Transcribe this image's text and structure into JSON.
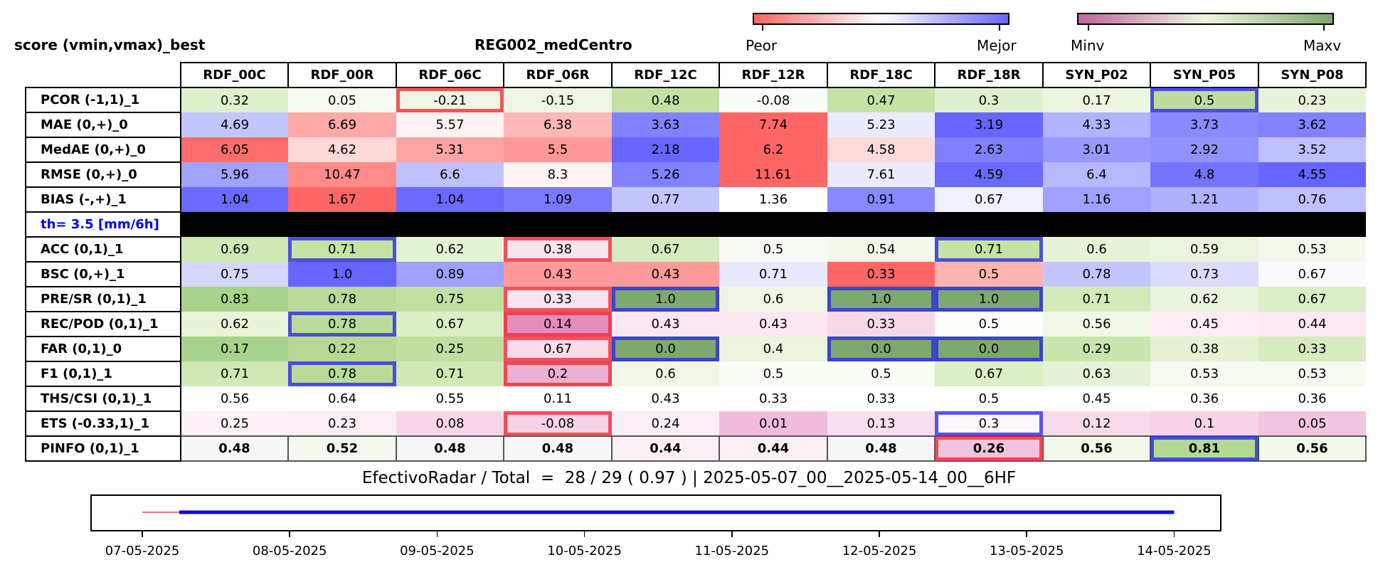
{
  "left_title": "score (vmin,vmax)_best",
  "region_title": "REG002_medCentro",
  "colorbar_quality": {
    "low_label": "Peor",
    "high_label": "Mejor",
    "low_color": "#ff6666",
    "mid_color": "#ffffff",
    "high_color": "#6666ff"
  },
  "colorbar_range": {
    "low_label": "Minv",
    "high_label": "Maxv",
    "low_color": "#c0659f",
    "mid_color": "#eef6dc",
    "high_color": "#7ea870"
  },
  "chart_data": {
    "type": "table",
    "columns": [
      "RDF_00C",
      "RDF_00R",
      "RDF_06C",
      "RDF_06R",
      "RDF_12C",
      "RDF_12R",
      "RDF_18C",
      "RDF_18R",
      "SYN_P02",
      "SYN_P05",
      "SYN_P08"
    ],
    "threshold_label": "th= 3.5 [mm/6h]",
    "rows": [
      {
        "label": "PCOR (-1,1)_1",
        "values": [
          "0.32",
          "0.05",
          "-0.21",
          "-0.15",
          "0.48",
          "-0.08",
          "0.47",
          "0.3",
          "0.17",
          "0.5",
          "0.23"
        ],
        "colors": [
          "#dff0cc",
          "#f7fbf2",
          "#eef6e3",
          "#eef6e3",
          "#c3e1a3",
          "#fbfdf8",
          "#c6e3a6",
          "#e0f0ce",
          "#ecf5df",
          "#bedd9c",
          "#e8f3da"
        ],
        "best": [
          null,
          null,
          "worst",
          null,
          null,
          null,
          null,
          null,
          null,
          "best",
          null
        ]
      },
      {
        "label": "MAE (0,+)_0",
        "values": [
          "4.69",
          "6.69",
          "5.57",
          "6.38",
          "3.63",
          "7.74",
          "5.23",
          "3.19",
          "4.33",
          "3.73",
          "3.62"
        ],
        "colors": [
          "#c4c4ff",
          "#ffa8a8",
          "#fff2f2",
          "#ffb8b8",
          "#8282ff",
          "#ff6666",
          "#ebebff",
          "#6666ff",
          "#b2b2ff",
          "#8a8aff",
          "#8282ff"
        ],
        "best": [
          null,
          null,
          null,
          null,
          null,
          null,
          null,
          null,
          null,
          null,
          null
        ]
      },
      {
        "label": "MedAE (0,+)_0",
        "values": [
          "6.05",
          "4.62",
          "5.31",
          "5.5",
          "2.18",
          "6.2",
          "4.58",
          "2.63",
          "3.01",
          "2.92",
          "3.52"
        ],
        "colors": [
          "#ff6c6c",
          "#ffd8d8",
          "#ffa4a4",
          "#ff9898",
          "#6666ff",
          "#ff6666",
          "#ffdada",
          "#8080ff",
          "#9898ff",
          "#9292ff",
          "#c0c0ff"
        ],
        "best": [
          null,
          null,
          null,
          null,
          null,
          null,
          null,
          null,
          null,
          null,
          null
        ]
      },
      {
        "label": "RMSE (0,+)_0",
        "values": [
          "5.96",
          "10.47",
          "6.6",
          "8.3",
          "5.26",
          "11.61",
          "7.61",
          "4.59",
          "6.4",
          "4.8",
          "4.55"
        ],
        "colors": [
          "#a2a2ff",
          "#ff8a8a",
          "#c0c0ff",
          "#fff2f2",
          "#8282ff",
          "#ff6666",
          "#eaeaff",
          "#6a6aff",
          "#b8b8ff",
          "#7474ff",
          "#6666ff"
        ],
        "best": [
          null,
          null,
          null,
          null,
          null,
          null,
          null,
          null,
          null,
          null,
          null
        ]
      },
      {
        "label": "BIAS (-,+)_1",
        "values": [
          "1.04",
          "1.67",
          "1.04",
          "1.09",
          "0.77",
          "1.36",
          "0.91",
          "0.67",
          "1.16",
          "1.21",
          "0.76"
        ],
        "colors": [
          "#6a6aff",
          "#ff6666",
          "#6a6aff",
          "#7a7aff",
          "#c4c4ff",
          "#ffffff",
          "#8888ff",
          "#f0f0ff",
          "#a0a0ff",
          "#b0b0ff",
          "#c0c0ff"
        ],
        "best": [
          null,
          null,
          null,
          null,
          null,
          null,
          null,
          null,
          null,
          null,
          null
        ]
      },
      {
        "label": "ACC (0,1)_1",
        "values": [
          "0.69",
          "0.71",
          "0.62",
          "0.38",
          "0.67",
          "0.5",
          "0.54",
          "0.71",
          "0.6",
          "0.59",
          "0.53"
        ],
        "colors": [
          "#cfe8b4",
          "#c6e3a6",
          "#e4f2d4",
          "#f9e4ef",
          "#d6ebbe",
          "#f7f9f3",
          "#f2f8ea",
          "#c6e3a6",
          "#e7f3d9",
          "#eaf4de",
          "#f4f9ed"
        ],
        "best": [
          null,
          "best",
          null,
          "worst",
          null,
          null,
          null,
          "best",
          null,
          null,
          null
        ]
      },
      {
        "label": "BSC (0,+)_1",
        "values": [
          "0.75",
          "1.0",
          "0.89",
          "0.43",
          "0.43",
          "0.71",
          "0.33",
          "0.5",
          "0.78",
          "0.73",
          "0.67"
        ],
        "colors": [
          "#d6d6ff",
          "#6666ff",
          "#a0a0ff",
          "#ff9a9a",
          "#ff9a9a",
          "#e8e8ff",
          "#ff6666",
          "#ffb4b4",
          "#c4c4ff",
          "#dcdcff",
          "#fbfbff"
        ],
        "best": [
          null,
          null,
          null,
          null,
          null,
          null,
          null,
          null,
          null,
          null,
          null
        ]
      },
      {
        "label": "PRE/SR (0,1)_1",
        "values": [
          "0.83",
          "0.78",
          "0.75",
          "0.33",
          "1.0",
          "0.6",
          "1.0",
          "1.0",
          "0.71",
          "0.62",
          "0.67"
        ],
        "colors": [
          "#a8d38a",
          "#b9da98",
          "#c2e0a2",
          "#fbe4ef",
          "#7ea870",
          "#eef6e3",
          "#7ea870",
          "#7ea870",
          "#d2e9b8",
          "#e9f4dc",
          "#dbeec5"
        ],
        "best": [
          null,
          null,
          null,
          "worst",
          "best",
          null,
          "best",
          "best",
          null,
          null,
          null
        ]
      },
      {
        "label": "REC/POD (0,1)_1",
        "values": [
          "0.62",
          "0.78",
          "0.67",
          "0.14",
          "0.43",
          "0.43",
          "0.33",
          "0.5",
          "0.56",
          "0.45",
          "0.44"
        ],
        "colors": [
          "#e8f3da",
          "#b9da98",
          "#dbeec5",
          "#e48dbd",
          "#fbe7f1",
          "#fbe7f1",
          "#f7d8e8",
          "#fdfdfb",
          "#f1f8e7",
          "#fcedf5",
          "#fbe9f3"
        ],
        "best": [
          null,
          "best",
          null,
          "worst",
          null,
          null,
          null,
          null,
          null,
          null,
          null
        ]
      },
      {
        "label": "FAR (0,1)_0",
        "values": [
          "0.17",
          "0.22",
          "0.25",
          "0.67",
          "0.0",
          "0.4",
          "0.0",
          "0.0",
          "0.29",
          "0.38",
          "0.33"
        ],
        "colors": [
          "#a8d38a",
          "#b6d996",
          "#c0dfa0",
          "#fadbea",
          "#7ea870",
          "#eaf4de",
          "#7ea870",
          "#7ea870",
          "#cae5ac",
          "#e4f2d2",
          "#d6ebbe"
        ],
        "best": [
          null,
          null,
          null,
          "worst",
          "best",
          null,
          "best",
          "best",
          null,
          null,
          null
        ]
      },
      {
        "label": "F1 (0,1)_1",
        "values": [
          "0.71",
          "0.78",
          "0.71",
          "0.2",
          "0.6",
          "0.5",
          "0.5",
          "0.67",
          "0.63",
          "0.53",
          "0.53"
        ],
        "colors": [
          "#cfe8b4",
          "#b9da98",
          "#cfe8b4",
          "#ebb0d2",
          "#f0f7e6",
          "#fafcf6",
          "#fafcf6",
          "#dbeec5",
          "#e6f2d7",
          "#f6faf0",
          "#f6faf0"
        ],
        "best": [
          null,
          "best",
          null,
          "worst",
          null,
          null,
          null,
          null,
          null,
          null,
          null
        ]
      },
      {
        "label": "THS/CSI (0,1)_1",
        "values": [
          "0.56",
          "0.64",
          "0.55",
          "0.11",
          "0.43",
          "0.33",
          "0.33",
          "0.5",
          "0.45",
          "0.36",
          "0.36"
        ],
        "colors": [
          "#ffffff",
          "#ffffff",
          "#ffffff",
          "#ffffff",
          "#ffffff",
          "#ffffff",
          "#ffffff",
          "#ffffff",
          "#ffffff",
          "#ffffff",
          "#ffffff"
        ],
        "best": [
          null,
          null,
          null,
          null,
          null,
          null,
          null,
          null,
          null,
          null,
          null
        ]
      },
      {
        "label": "ETS (-0.33,1)_1",
        "values": [
          "0.25",
          "0.23",
          "0.08",
          "-0.08",
          "0.24",
          "0.01",
          "0.13",
          "0.3",
          "0.12",
          "0.1",
          "0.05"
        ],
        "colors": [
          "#fcf1f7",
          "#fbeef5",
          "#f7d6e8",
          "#f5d4e6",
          "#fbeff6",
          "#f0bcd9",
          "#f8dfed",
          "#fdf6fa",
          "#f8dbeb",
          "#f6d4e6",
          "#f1c6de"
        ],
        "best": [
          null,
          null,
          null,
          "worst",
          null,
          null,
          null,
          "best",
          null,
          null,
          null
        ]
      },
      {
        "label": "PINFO (0,1)_1",
        "values": [
          "0.48",
          "0.52",
          "0.48",
          "0.48",
          "0.44",
          "0.44",
          "0.48",
          "0.26",
          "0.56",
          "0.81",
          "0.56"
        ],
        "colors": [
          "#f7f7f7",
          "#f4f9ed",
          "#f7f7f7",
          "#f7f7f7",
          "#fcf0f6",
          "#fcf0f6",
          "#f7f7f7",
          "#f0c4dc",
          "#f2f8ea",
          "#b4d994",
          "#f2f8ea"
        ],
        "best": [
          null,
          null,
          null,
          null,
          null,
          null,
          null,
          "worst",
          null,
          "best",
          null
        ]
      }
    ]
  },
  "summary_text": "EfectivoRadar / Total  =  28 / 29 ( 0.97 ) | 2025-05-07_00__2025-05-14_00__6HF",
  "timeline": {
    "ticks": [
      "07-05-2025",
      "08-05-2025",
      "09-05-2025",
      "10-05-2025",
      "11-05-2025",
      "12-05-2025",
      "13-05-2025",
      "14-05-2025"
    ],
    "missing_range": [
      0,
      0.25
    ],
    "effective_range": [
      0.25,
      7.0
    ],
    "missing_color": "#e8261c",
    "effective_color": "#0a0ae0"
  }
}
